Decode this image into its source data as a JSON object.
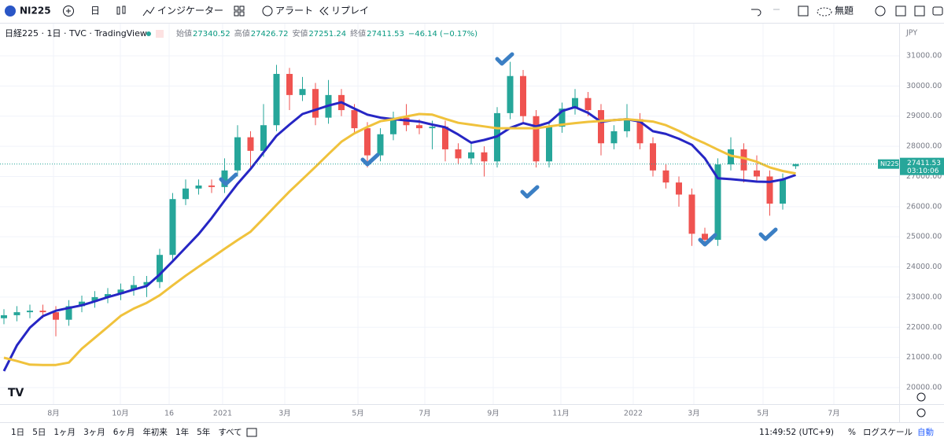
{
  "toolbar": {
    "symbol": "NI225",
    "interval": "日",
    "indicators": "インジケーター",
    "alert": "アラート",
    "replay": "リプレイ",
    "layout_name": "無題"
  },
  "legend": {
    "title": "日経225 · 1日 · TVC · TradingView",
    "keys": [
      "始値",
      "高値",
      "安値",
      "終値"
    ],
    "change": "−46.14 (−0.17%)"
  },
  "price_label": {
    "symbol": "NI225",
    "countdown": "03:10:06"
  },
  "currency": "JPY",
  "logo": "TV",
  "chart_data": {
    "type": "candlestick",
    "up_color": "#26a69a",
    "down_color": "#ef5350",
    "ohlc": [
      [
        22300,
        22600,
        22100,
        22400
      ],
      [
        22400,
        22700,
        22200,
        22500
      ],
      [
        22500,
        22750,
        22300,
        22550
      ],
      [
        22550,
        22750,
        22300,
        22500
      ],
      [
        22500,
        22700,
        21700,
        22250
      ],
      [
        22250,
        22900,
        22050,
        22700
      ],
      [
        22700,
        23050,
        22500,
        22850
      ],
      [
        22850,
        23200,
        22650,
        23000
      ],
      [
        23000,
        23300,
        22800,
        23100
      ],
      [
        23100,
        23450,
        22900,
        23250
      ],
      [
        23250,
        23700,
        23050,
        23400
      ],
      [
        23400,
        23700,
        23000,
        23500
      ],
      [
        23500,
        24600,
        23300,
        24400
      ],
      [
        24400,
        26450,
        24200,
        26250
      ],
      [
        26250,
        26900,
        26050,
        26600
      ],
      [
        26600,
        26900,
        26400,
        26700
      ],
      [
        26700,
        26900,
        26450,
        26650
      ],
      [
        26650,
        27600,
        26450,
        27200
      ],
      [
        27200,
        28700,
        27000,
        28300
      ],
      [
        28300,
        28500,
        27300,
        27850
      ],
      [
        27850,
        29400,
        27650,
        28700
      ],
      [
        28700,
        30700,
        28500,
        30400
      ],
      [
        30400,
        30600,
        29200,
        29700
      ],
      [
        29700,
        30300,
        29500,
        29900
      ],
      [
        29900,
        30100,
        28700,
        28950
      ],
      [
        28950,
        30200,
        28750,
        29700
      ],
      [
        29700,
        29900,
        29000,
        29200
      ],
      [
        29200,
        29400,
        28400,
        28600
      ],
      [
        28600,
        28800,
        27300,
        27700
      ],
      [
        27700,
        28600,
        27500,
        28400
      ],
      [
        28400,
        29150,
        28200,
        28950
      ],
      [
        28950,
        29400,
        28500,
        28700
      ],
      [
        28700,
        28900,
        28400,
        28600
      ],
      [
        28600,
        28850,
        27900,
        28650
      ],
      [
        28650,
        28850,
        27500,
        27900
      ],
      [
        27900,
        28100,
        27400,
        27600
      ],
      [
        27600,
        28100,
        27400,
        27800
      ],
      [
        27800,
        28000,
        27000,
        27500
      ],
      [
        27500,
        29300,
        27300,
        29100
      ],
      [
        29100,
        30800,
        28900,
        30330
      ],
      [
        30330,
        30530,
        28800,
        29000
      ],
      [
        29000,
        29200,
        27300,
        27500
      ],
      [
        27500,
        28850,
        27300,
        28650
      ],
      [
        28650,
        29450,
        28450,
        29250
      ],
      [
        29250,
        29900,
        29050,
        29600
      ],
      [
        29600,
        29800,
        29000,
        29200
      ],
      [
        29200,
        29400,
        27700,
        28100
      ],
      [
        28100,
        28700,
        27900,
        28500
      ],
      [
        28500,
        29400,
        28300,
        28900
      ],
      [
        28900,
        29100,
        27900,
        28100
      ],
      [
        28100,
        28300,
        27000,
        27200
      ],
      [
        27200,
        27400,
        26600,
        26800
      ],
      [
        26800,
        27000,
        26000,
        26400
      ],
      [
        26400,
        26600,
        24700,
        25100
      ],
      [
        25100,
        25300,
        24700,
        24900
      ],
      [
        24900,
        27600,
        24700,
        27400
      ],
      [
        27400,
        28300,
        27200,
        27900
      ],
      [
        27900,
        28100,
        26800,
        27200
      ],
      [
        27200,
        27700,
        26800,
        27000
      ],
      [
        27000,
        27200,
        25700,
        26100
      ],
      [
        26100,
        27100,
        25900,
        26900
      ],
      [
        27340.52,
        27426.72,
        27251.24,
        27411.53
      ]
    ],
    "series": [
      {
        "color": "#2626c4",
        "values": [
          20550,
          21400,
          21990,
          22370,
          22550,
          22640,
          22730,
          22860,
          23000,
          23120,
          23250,
          23370,
          23750,
          24190,
          24640,
          25090,
          25620,
          26200,
          26760,
          27250,
          27800,
          28350,
          28720,
          29070,
          29210,
          29350,
          29460,
          29250,
          29050,
          28950,
          28900,
          28860,
          28820,
          28720,
          28630,
          28390,
          28120,
          28210,
          28330,
          28610,
          28770,
          28660,
          28790,
          29170,
          29300,
          29110,
          28810,
          28870,
          28900,
          28820,
          28500,
          28410,
          28250,
          28050,
          27600,
          26940,
          26910,
          26870,
          26830,
          26820,
          26900,
          27050
        ]
      },
      {
        "color": "#f0c23c",
        "values": [
          20990,
          20880,
          20760,
          20750,
          20750,
          20830,
          21290,
          21650,
          22010,
          22380,
          22620,
          22810,
          23060,
          23390,
          23710,
          24010,
          24300,
          24600,
          24890,
          25170,
          25610,
          26060,
          26500,
          26910,
          27320,
          27740,
          28150,
          28430,
          28640,
          28830,
          28900,
          28990,
          29070,
          29050,
          28910,
          28780,
          28720,
          28660,
          28600,
          28600,
          28600,
          28600,
          28660,
          28720,
          28770,
          28810,
          28840,
          28870,
          28900,
          28860,
          28820,
          28700,
          28510,
          28290,
          28100,
          27890,
          27690,
          27610,
          27490,
          27300,
          27180,
          27100
        ]
      }
    ],
    "ylim": [
      19600,
      31600
    ],
    "yticks": [
      {
        "value": 20000,
        "label": "20000.00"
      },
      {
        "value": 21000,
        "label": "21000.00"
      },
      {
        "value": 22000,
        "label": "22000.00"
      },
      {
        "value": 23000,
        "label": "23000.00"
      },
      {
        "value": 24000,
        "label": "24000.00"
      },
      {
        "value": 25000,
        "label": "25000.00"
      },
      {
        "value": 26000,
        "label": "26000.00"
      },
      {
        "value": 27000,
        "label": "27000.00"
      },
      {
        "value": 28000,
        "label": "28000.00"
      },
      {
        "value": 29000,
        "label": "29000.00"
      },
      {
        "value": 30000,
        "label": "30000.00"
      },
      {
        "value": 31000,
        "label": "31000.00"
      }
    ],
    "time_labels": [
      "8月",
      "10月",
      "16",
      "2021",
      "3月",
      "5月",
      "7月",
      "9月",
      "11月",
      "2022",
      "3月",
      "5月",
      "7月"
    ],
    "grid": true
  },
  "bottom_bar": {
    "ranges": [
      "1日",
      "5日",
      "1ヶ月",
      "3ヶ月",
      "6ヶ月",
      "年初来",
      "1年",
      "5年",
      "すべて"
    ],
    "clock": "11:49:52 (UTC+9)",
    "percent": "%",
    "log_scale": "ログスケール",
    "auto": "自動"
  }
}
